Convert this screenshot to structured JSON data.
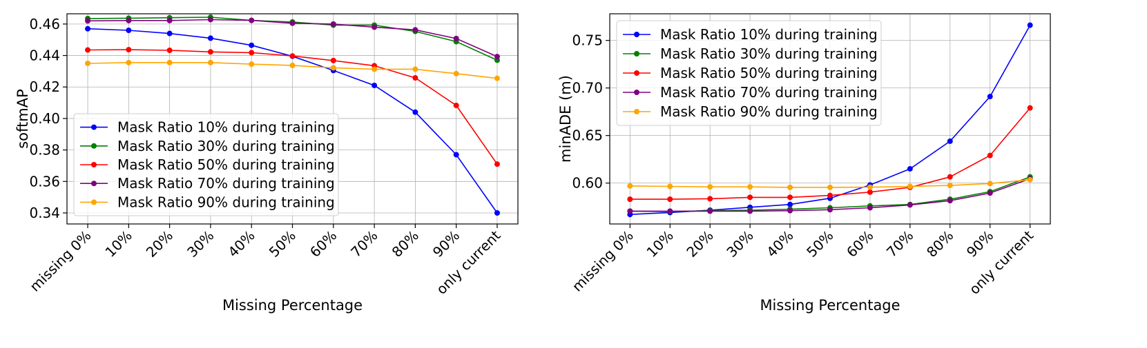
{
  "chart_data": [
    {
      "type": "line",
      "xlabel": "Missing Percentage",
      "ylabel": "softmAP",
      "categories": [
        "missing 0%",
        "10%",
        "20%",
        "30%",
        "40%",
        "50%",
        "60%",
        "70%",
        "80%",
        "90%",
        "only current"
      ],
      "ylim": [
        0.333,
        0.4665
      ],
      "yticks": [
        0.34,
        0.36,
        0.38,
        0.4,
        0.42,
        0.44,
        0.46
      ],
      "ytick_labels": [
        "0.34",
        "0.36",
        "0.38",
        "0.40",
        "0.42",
        "0.44",
        "0.46"
      ],
      "grid": true,
      "legend": "lower-left",
      "series": [
        {
          "name": "Mask Ratio 10% during training",
          "color": "#0000ff",
          "values": [
            0.457,
            0.456,
            0.454,
            0.451,
            0.4465,
            0.4395,
            0.4305,
            0.421,
            0.404,
            0.377,
            0.34
          ]
        },
        {
          "name": "Mask Ratio 30% during training",
          "color": "#008000",
          "values": [
            0.4635,
            0.4637,
            0.464,
            0.4643,
            0.4623,
            0.4613,
            0.4593,
            0.4593,
            0.4553,
            0.4488,
            0.437
          ]
        },
        {
          "name": "Mask Ratio 50% during training",
          "color": "#ff0000",
          "values": [
            0.4435,
            0.4437,
            0.4433,
            0.4423,
            0.4418,
            0.4397,
            0.4368,
            0.4335,
            0.4258,
            0.4083,
            0.371
          ]
        },
        {
          "name": "Mask Ratio 70% during training",
          "color": "#800080",
          "values": [
            0.462,
            0.4622,
            0.4622,
            0.4628,
            0.4623,
            0.4605,
            0.46,
            0.458,
            0.4563,
            0.4508,
            0.4393
          ]
        },
        {
          "name": "Mask Ratio 90% during training",
          "color": "#ffa500",
          "values": [
            0.435,
            0.4355,
            0.4355,
            0.4355,
            0.4345,
            0.4337,
            0.4322,
            0.4313,
            0.4313,
            0.4285,
            0.4255
          ]
        }
      ]
    },
    {
      "type": "line",
      "xlabel": "Missing Percentage",
      "ylabel": "minADE (m)",
      "categories": [
        "missing 0%",
        "10%",
        "20%",
        "30%",
        "40%",
        "50%",
        "60%",
        "70%",
        "80%",
        "90%",
        "only current"
      ],
      "ylim": [
        0.557,
        0.778
      ],
      "yticks": [
        0.6,
        0.65,
        0.7,
        0.75
      ],
      "ytick_labels": [
        "0.60",
        "0.65",
        "0.70",
        "0.75"
      ],
      "grid": true,
      "legend": "upper-left",
      "series": [
        {
          "name": "Mask Ratio 10% during training",
          "color": "#0000ff",
          "values": [
            0.567,
            0.569,
            0.5715,
            0.5745,
            0.5775,
            0.584,
            0.598,
            0.615,
            0.644,
            0.691,
            0.766
          ]
        },
        {
          "name": "Mask Ratio 30% during training",
          "color": "#008000",
          "values": [
            0.5705,
            0.57,
            0.571,
            0.5715,
            0.5725,
            0.574,
            0.576,
            0.5775,
            0.583,
            0.591,
            0.6065
          ]
        },
        {
          "name": "Mask Ratio 50% during training",
          "color": "#ff0000",
          "values": [
            0.583,
            0.583,
            0.5835,
            0.585,
            0.585,
            0.587,
            0.5905,
            0.5955,
            0.6065,
            0.629,
            0.679
          ]
        },
        {
          "name": "Mask Ratio 70% during training",
          "color": "#800080",
          "values": [
            0.5705,
            0.5705,
            0.5705,
            0.5705,
            0.571,
            0.572,
            0.574,
            0.577,
            0.5815,
            0.5895,
            0.6045
          ]
        },
        {
          "name": "Mask Ratio 90% during training",
          "color": "#ffa500",
          "values": [
            0.597,
            0.5965,
            0.596,
            0.596,
            0.5955,
            0.5955,
            0.5957,
            0.5965,
            0.5975,
            0.5995,
            0.6035
          ]
        }
      ]
    }
  ]
}
